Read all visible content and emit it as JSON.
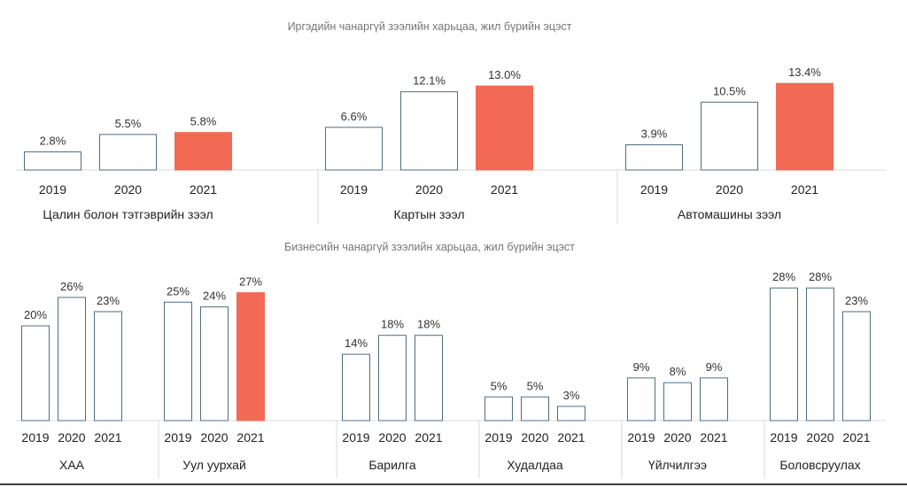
{
  "chart_data": [
    {
      "type": "bar",
      "title": "Иргэдийн чанаргүй зээлийн харьцаа, жил бүрийн эцэст",
      "highlight_color": "#f26a53",
      "outline_color": "#4d6e82",
      "groups": [
        {
          "name": "Цалин болон тэтгэврийн зээл",
          "categories": [
            "2019",
            "2020",
            "2021"
          ],
          "values": [
            2.8,
            5.5,
            5.8
          ],
          "labels": [
            "2.8%",
            "5.5%",
            "5.8%"
          ],
          "highlight": [
            false,
            false,
            true
          ]
        },
        {
          "name": "Картын зээл",
          "categories": [
            "2019",
            "2020",
            "2021"
          ],
          "values": [
            6.6,
            12.1,
            13.0
          ],
          "labels": [
            "6.6%",
            "12.1%",
            "13.0%"
          ],
          "highlight": [
            false,
            false,
            true
          ]
        },
        {
          "name": "Автомашины зээл",
          "categories": [
            "2019",
            "2020",
            "2021"
          ],
          "values": [
            3.9,
            10.5,
            13.4
          ],
          "labels": [
            "3.9%",
            "10.5%",
            "13.4%"
          ],
          "highlight": [
            false,
            false,
            true
          ]
        }
      ]
    },
    {
      "type": "bar",
      "title": "Бизнесийн чанаргүй зээлийн харьцаа, жил бүрийн эцэст",
      "highlight_color": "#f26a53",
      "outline_color": "#4d6e82",
      "groups": [
        {
          "name": "ХАА",
          "categories": [
            "2019",
            "2020",
            "2021"
          ],
          "values": [
            20,
            26,
            23
          ],
          "labels": [
            "20%",
            "26%",
            "23%"
          ],
          "highlight": [
            false,
            false,
            false
          ]
        },
        {
          "name": "Уул уурхай",
          "categories": [
            "2019",
            "2020",
            "2021"
          ],
          "values": [
            25,
            24,
            27
          ],
          "labels": [
            "25%",
            "24%",
            "27%"
          ],
          "highlight": [
            false,
            false,
            true
          ]
        },
        {
          "name": "Барилга",
          "categories": [
            "2019",
            "2020",
            "2021"
          ],
          "values": [
            14,
            18,
            18
          ],
          "labels": [
            "14%",
            "18%",
            "18%"
          ],
          "highlight": [
            false,
            false,
            false
          ]
        },
        {
          "name": "Худалдаа",
          "categories": [
            "2019",
            "2020",
            "2021"
          ],
          "values": [
            5,
            5,
            3
          ],
          "labels": [
            "5%",
            "5%",
            "3%"
          ],
          "highlight": [
            false,
            false,
            false
          ]
        },
        {
          "name": "Үйлчилгээ",
          "categories": [
            "2019",
            "2020",
            "2021"
          ],
          "values": [
            9,
            8,
            9
          ],
          "labels": [
            "9%",
            "8%",
            "9%"
          ],
          "highlight": [
            false,
            false,
            false
          ]
        },
        {
          "name": "Боловсруулах",
          "categories": [
            "2019",
            "2020",
            "2021"
          ],
          "values": [
            28,
            28,
            23
          ],
          "labels": [
            "28%",
            "28%",
            "23%"
          ],
          "highlight": [
            false,
            false,
            false
          ]
        }
      ]
    }
  ]
}
